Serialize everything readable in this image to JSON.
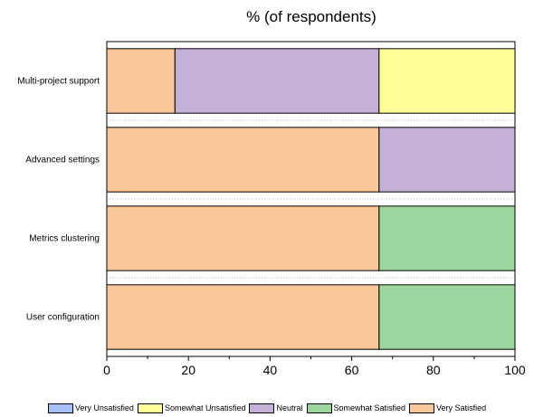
{
  "chart_data": {
    "type": "bar",
    "orientation": "horizontal",
    "stacked": true,
    "title": "% (of respondents)",
    "xlabel": "",
    "ylabel": "",
    "xlim": [
      0,
      100
    ],
    "xticks": [
      0,
      20,
      40,
      60,
      80,
      100
    ],
    "categories": [
      "Multi-project support",
      "Advanced settings",
      "Metrics clustering",
      "User configuration"
    ],
    "series": [
      {
        "name": "Very Satisfied",
        "color": "#fac898",
        "values": [
          16.7,
          66.7,
          66.7,
          66.7
        ]
      },
      {
        "name": "Somewhat Satisfied",
        "color": "#9dd69d",
        "values": [
          0,
          0,
          33.3,
          33.3
        ]
      },
      {
        "name": "Neutral",
        "color": "#c3b1d8",
        "values": [
          50,
          33.3,
          0,
          0
        ]
      },
      {
        "name": "Somewhat Unsatisfied",
        "color": "#ffff99",
        "values": [
          33.3,
          0,
          0,
          0
        ]
      },
      {
        "name": "Very Unsatisfied",
        "color": "#a3c1f5",
        "values": [
          0,
          0,
          0,
          0
        ]
      }
    ],
    "legend": {
      "placement": "bottom",
      "order": [
        "Very Unsatisfied",
        "Somewhat Unsatisfied",
        "Neutral",
        "Somewhat Satisfied",
        "Very Satisfied"
      ]
    }
  }
}
